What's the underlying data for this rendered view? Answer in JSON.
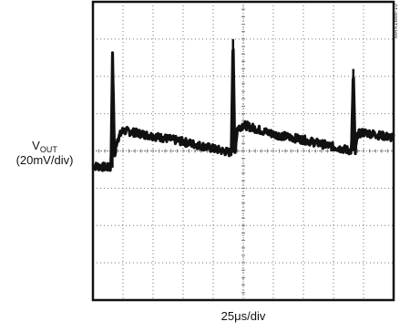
{
  "chart_data": {
    "type": "line",
    "title": "",
    "figure_id": "MAX1686-10",
    "ylabel": {
      "main": "V",
      "subscript": "OUT",
      "scale": "(20mV/div)"
    },
    "xlabel": "25μs/div",
    "grid": {
      "on": true,
      "style": "dotted",
      "x_divisions": 10,
      "y_divisions": 8
    },
    "x_range_div": [
      0,
      10
    ],
    "y_range_div": [
      -4,
      4
    ],
    "series": [
      {
        "trace": "ripple",
        "x_div": [
          0,
          0.6,
          0.65,
          0.72,
          0.8,
          1.0,
          2.0,
          3.0,
          4.6,
          4.66,
          4.72,
          4.8,
          5.0,
          6.0,
          7.0,
          8.6,
          8.66,
          8.72,
          8.8,
          9.0,
          10
        ],
        "y_div": [
          -0.4,
          -0.45,
          2.6,
          -0.2,
          0.3,
          0.55,
          0.4,
          0.25,
          -0.05,
          3.0,
          -0.1,
          0.6,
          0.7,
          0.45,
          0.3,
          0.0,
          2.2,
          -0.1,
          0.45,
          0.5,
          0.35
        ]
      }
    ],
    "colors": {
      "trace": "#111111",
      "frame": "#111111",
      "grid": "#777777",
      "background": "#ffffff"
    }
  }
}
